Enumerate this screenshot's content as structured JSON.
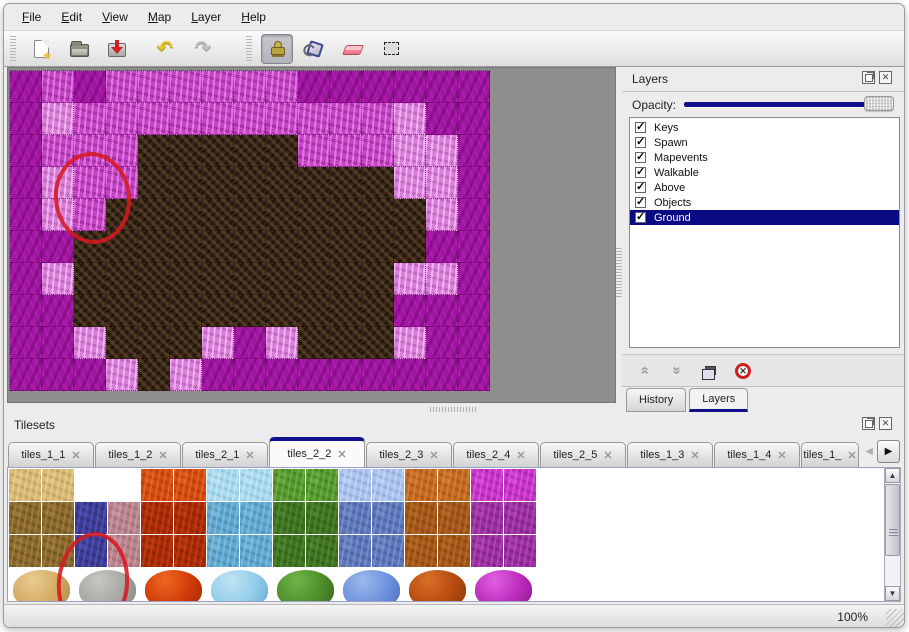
{
  "menubar": {
    "items": [
      {
        "label": "File"
      },
      {
        "label": "Edit"
      },
      {
        "label": "View"
      },
      {
        "label": "Map"
      },
      {
        "label": "Layer"
      },
      {
        "label": "Help"
      }
    ]
  },
  "toolbar": {
    "tools": [
      {
        "name": "new-file",
        "icon": "new-file-icon",
        "selected": false
      },
      {
        "name": "open",
        "icon": "open-folder-icon",
        "selected": false
      },
      {
        "name": "save",
        "icon": "save-download-icon",
        "selected": false
      },
      {
        "name": "undo",
        "icon": "undo-arrow-icon",
        "glyph": "↶",
        "selected": false
      },
      {
        "name": "redo",
        "icon": "redo-arrow-icon",
        "glyph": "↷",
        "selected": false
      },
      {
        "name": "stamp-tool",
        "icon": "stamp-tool-icon",
        "selected": true
      },
      {
        "name": "fill-tool",
        "icon": "fill-bucket-icon",
        "selected": false
      },
      {
        "name": "eraser-tool",
        "icon": "eraser-icon",
        "selected": false
      },
      {
        "name": "select-tool",
        "icon": "marquee-select-icon",
        "selected": false
      }
    ]
  },
  "map_view": {
    "tile_size": 32,
    "columns": 15,
    "rows": 10,
    "grid": [
      "DPDPPPPPPDDDDDD",
      "DLPPPPPPPPPPLDD",
      "DPPPBBBBBPPPLLD",
      "DLPPBBBBBBBBLLD",
      "DLPBBBBBBBBBBLD",
      "DDBBBBBBBBBBBDD",
      "DLBBBBBBBBBBLLD",
      "DDBBBBBBBBBBDDD",
      "DDLBBBLDLBBBLDD",
      "DDDLBLDDDDDDDDD"
    ],
    "tile_colors": {
      "D": "#a316a3",
      "P": "#c644c6",
      "L": "#da80da",
      "B": "#35241a"
    },
    "annotation": {
      "shape": "red-ellipse",
      "color": "#d61a20"
    }
  },
  "layers_panel": {
    "title": "Layers",
    "opacity_label": "Opacity:",
    "opacity_value": 1.0,
    "accent_color": "#10108c",
    "layers": [
      {
        "name": "Keys",
        "checked": true,
        "selected": false
      },
      {
        "name": "Spawn",
        "checked": true,
        "selected": false
      },
      {
        "name": "Mapevents",
        "checked": true,
        "selected": false
      },
      {
        "name": "Walkable",
        "checked": true,
        "selected": false
      },
      {
        "name": "Above",
        "checked": true,
        "selected": false
      },
      {
        "name": "Objects",
        "checked": true,
        "selected": false
      },
      {
        "name": "Ground",
        "checked": true,
        "selected": true
      }
    ],
    "buttons": [
      "raise-layer",
      "lower-layer",
      "duplicate-layer",
      "delete-layer"
    ],
    "tabs": [
      {
        "label": "History",
        "selected": false
      },
      {
        "label": "Layers",
        "selected": true
      }
    ]
  },
  "tilesets_panel": {
    "title": "Tilesets",
    "tabs": [
      {
        "label": "tiles_1_1",
        "selected": false
      },
      {
        "label": "tiles_1_2",
        "selected": false
      },
      {
        "label": "tiles_2_1",
        "selected": false
      },
      {
        "label": "tiles_2_2",
        "selected": true
      },
      {
        "label": "tiles_2_3",
        "selected": false
      },
      {
        "label": "tiles_2_4",
        "selected": false
      },
      {
        "label": "tiles_2_5",
        "selected": false
      },
      {
        "label": "tiles_1_3",
        "selected": false
      },
      {
        "label": "tiles_1_4",
        "selected": false
      },
      {
        "label": "tiles_1_",
        "selected": false,
        "truncated": true
      }
    ],
    "grid_rows": [
      [
        "sandA",
        "sandA",
        "rockA",
        "rockA",
        "fireA",
        "fireA",
        "iceA",
        "iceA",
        "vineA",
        "vineA",
        "crysA",
        "crysA",
        "rustA",
        "rustA",
        "webA",
        "webA"
      ],
      [
        "furB",
        "furB",
        "selB",
        "mauveB",
        "fireB",
        "fireB",
        "iceB",
        "iceB",
        "vineB",
        "vineB",
        "crysB",
        "crysB",
        "rustB",
        "rustB",
        "webB",
        "webB"
      ],
      [
        "furB",
        "furB",
        "selB",
        "mauveB",
        "fireB",
        "fireB",
        "iceB",
        "iceB",
        "vineB",
        "vineB",
        "crysB",
        "crysB",
        "rustB",
        "rustB",
        "webB",
        "webB"
      ]
    ],
    "mound_row": [
      "sandM",
      "rockM",
      "fireM",
      "iceM",
      "vineM",
      "crysM",
      "rustM",
      "webM"
    ],
    "palette": {
      "sandA": [
        "#d9b975",
        "#ecd9a4",
        "#b3924e"
      ],
      "rockA": [
        "#a9a9a3",
        "#cccateverything",
        "#83837d"
      ],
      "fireA": [
        "#d54a10",
        "#f07830",
        "#a93208"
      ],
      "iceA": [
        "#a9d9ec",
        "#d4eef8",
        "#7ab8d8"
      ],
      "vineA": [
        "#57992f",
        "#7dc050",
        "#3a701c"
      ],
      "crysA": [
        "#aac2ec",
        "#d0e0f8",
        "#7e9cd4"
      ],
      "rustA": [
        "#c46a20",
        "#e09048",
        "#9a4c12"
      ],
      "webA": [
        "#c832c8",
        "#e868e8",
        "#961e96"
      ],
      "furB": [
        "#8a682e",
        "#b08c48",
        "#5f4518"
      ],
      "selB": [
        "#3d3d97",
        "#5f5fc0",
        "#28286a"
      ],
      "mauveB": [
        "#b9838e",
        "#d4a8b0",
        "#96606c"
      ],
      "fireB": [
        "#a82a06",
        "#cc4c1a",
        "#801c02"
      ],
      "iceB": [
        "#61a8d0",
        "#90cce8",
        "#3f80ac"
      ],
      "vineB": [
        "#3f7322",
        "#5c9638",
        "#2a5212"
      ],
      "crysB": [
        "#5e76ba",
        "#8aa0da",
        "#415490"
      ],
      "rustB": [
        "#a45618",
        "#c47830",
        "#7c3c0c"
      ],
      "webB": [
        "#9a2f9f",
        "#c454c8",
        "#6e1c74"
      ],
      "sandM": [
        "#d5ab63",
        "#e8cc90",
        "#b0884a"
      ],
      "rockM": [
        "#a7a7a3",
        "#c6c6c2",
        "#858581"
      ],
      "fireM": [
        "#d03c08",
        "#ee6820",
        "#a82c04"
      ],
      "iceM": [
        "#92cdea",
        "#c0e4f4",
        "#68a8cc"
      ],
      "vineM": [
        "#4e8f2c",
        "#70b448",
        "#356818"
      ],
      "crysM": [
        "#6e93dd",
        "#9cb8ec",
        "#4a6cc0"
      ],
      "rustM": [
        "#b84b10",
        "#d87028",
        "#903808"
      ],
      "webM": [
        "#bc2cbc",
        "#e060e0",
        "#8c1a8c"
      ]
    },
    "selected_tile_annotation": {
      "shape": "red-ellipse",
      "color": "#d61a20"
    }
  },
  "statusbar": {
    "zoom_level": "100%"
  }
}
